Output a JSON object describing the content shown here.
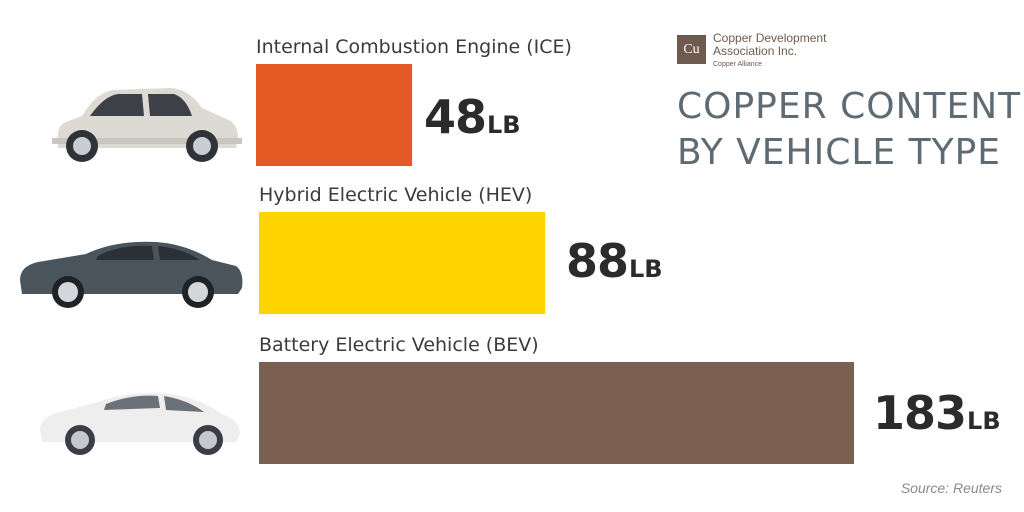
{
  "logo": {
    "symbol": "Cu",
    "org": "Copper Development Association Inc.",
    "tagline": "Copper Alliance"
  },
  "title_line1": "COPPER CONTENT",
  "title_line2": "BY VEHICLE TYPE",
  "source": "Source: Reuters",
  "unit": "LB",
  "colors": {
    "ice": "#e35a25",
    "hev": "#fdd300",
    "bev": "#7b5f51",
    "title": "#5f6b73"
  },
  "chart_data": {
    "type": "bar",
    "orientation": "horizontal",
    "categories": [
      "Internal Combustion Engine (ICE)",
      "Hybrid Electric Vehicle (HEV)",
      "Battery Electric Vehicle (BEV)"
    ],
    "values": [
      48,
      88,
      183
    ],
    "value_labels": [
      "48",
      "88",
      "183"
    ],
    "unit": "LB",
    "bar_colors": [
      "#e35a25",
      "#fdd300",
      "#7b5f51"
    ],
    "icons": [
      "hatchback-car-icon",
      "sedan-car-icon",
      "sports-sedan-car-icon"
    ],
    "title": "COPPER CONTENT BY VEHICLE TYPE",
    "xlabel": "",
    "ylabel": "",
    "grid": false,
    "legend": "none"
  }
}
